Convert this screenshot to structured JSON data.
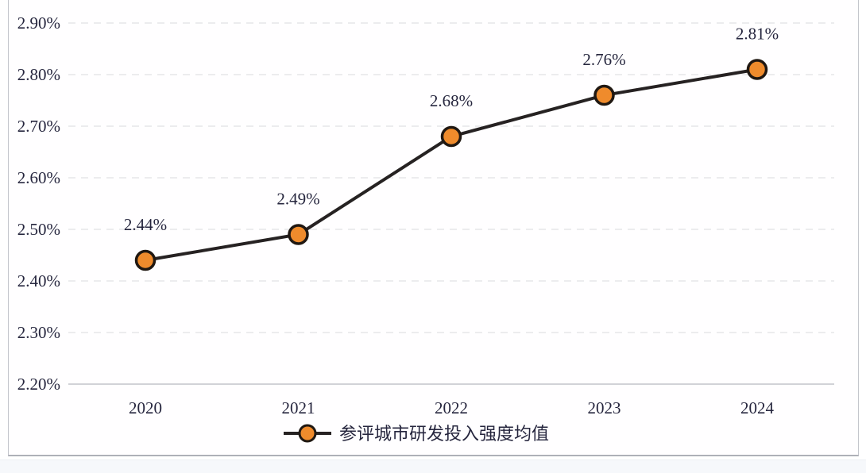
{
  "chart_data": {
    "type": "line",
    "title": "",
    "categories": [
      "2020",
      "2021",
      "2022",
      "2023",
      "2024"
    ],
    "series": [
      {
        "name": "参评城市研发投入强度均值",
        "values": [
          2.44,
          2.49,
          2.68,
          2.76,
          2.81
        ]
      }
    ],
    "data_labels": [
      "2.44%",
      "2.49%",
      "2.68%",
      "2.76%",
      "2.81%"
    ],
    "y_ticks": [
      "2.90%",
      "2.80%",
      "2.70%",
      "2.60%",
      "2.50%",
      "2.40%",
      "2.30%",
      "2.20%"
    ],
    "ylim": [
      2.2,
      2.9
    ],
    "xlabel": "",
    "ylabel": "",
    "grid": "horizontal-dashed",
    "legend_position": "bottom-center",
    "colors": {
      "marker_fill": "#ef8b2c",
      "marker_stroke": "#201812",
      "line": "#262222",
      "label_text": "#26263e",
      "gridline": "#dadbde",
      "axis_line": "#c2c4ca",
      "card_border": "#b2b5bc",
      "footer_strip": "#f6f8fb"
    }
  },
  "legend": {
    "label": "参评城市研发投入强度均值"
  }
}
